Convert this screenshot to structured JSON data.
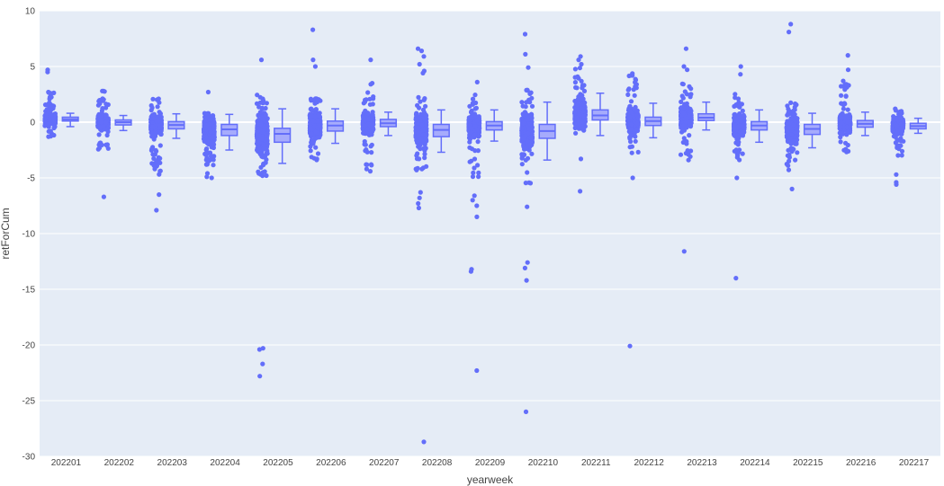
{
  "chart_data": {
    "type": "box",
    "xlabel": "yearweek",
    "ylabel": "retForCum",
    "ylim": [
      -30,
      10
    ],
    "yticks": [
      10,
      5,
      0,
      -5,
      -10,
      -15,
      -20,
      -25,
      -30
    ],
    "categories": [
      "202201",
      "202202",
      "202203",
      "202204",
      "202205",
      "202206",
      "202207",
      "202208",
      "202209",
      "202210",
      "202211",
      "202212",
      "202213",
      "202214",
      "202215",
      "202216",
      "202217"
    ],
    "points": "all",
    "grid": true,
    "legend": "none",
    "colors": {
      "box": "#636efa",
      "box_fill": "#a6abfc",
      "plot_bg": "#e5ecf6",
      "grid": "#ffffff",
      "text": "#444444"
    },
    "stats": [
      {
        "q1": 0.1,
        "median": 0.25,
        "q3": 0.45,
        "whisker_low": -0.4,
        "whisker_high": 0.8,
        "pmin": -1.3,
        "pmax": 3.0
      },
      {
        "q1": -0.25,
        "median": 0.0,
        "q3": 0.2,
        "whisker_low": -0.75,
        "whisker_high": 0.6,
        "pmin": -2.5,
        "pmax": 2.8
      },
      {
        "q1": -0.6,
        "median": -0.25,
        "q3": 0.05,
        "whisker_low": -1.45,
        "whisker_high": 0.75,
        "pmin": -4.8,
        "pmax": 2.1
      },
      {
        "q1": -1.2,
        "median": -0.65,
        "q3": -0.2,
        "whisker_low": -2.5,
        "whisker_high": 0.7,
        "pmin": -4.0,
        "pmax": 0.8
      },
      {
        "q1": -1.8,
        "median": -1.05,
        "q3": -0.55,
        "whisker_low": -3.7,
        "whisker_high": 1.2,
        "pmin": -5.0,
        "pmax": 2.5
      },
      {
        "q1": -0.8,
        "median": -0.3,
        "q3": 0.1,
        "whisker_low": -1.9,
        "whisker_high": 1.2,
        "pmin": -3.5,
        "pmax": 2.2
      },
      {
        "q1": -0.4,
        "median": -0.1,
        "q3": 0.25,
        "whisker_low": -1.2,
        "whisker_high": 0.9,
        "pmin": -4.3,
        "pmax": 3.5
      },
      {
        "q1": -1.3,
        "median": -0.7,
        "q3": -0.2,
        "whisker_low": -2.7,
        "whisker_high": 1.1,
        "pmin": -4.3,
        "pmax": 2.5
      },
      {
        "q1": -0.7,
        "median": -0.3,
        "q3": 0.05,
        "whisker_low": -1.7,
        "whisker_high": 1.1,
        "pmin": -5.0,
        "pmax": 2.7
      },
      {
        "q1": -1.45,
        "median": -0.8,
        "q3": -0.2,
        "whisker_low": -3.4,
        "whisker_high": 1.8,
        "pmin": -5.8,
        "pmax": 2.9
      },
      {
        "q1": 0.2,
        "median": 0.6,
        "q3": 1.1,
        "whisker_low": -1.2,
        "whisker_high": 2.6,
        "pmin": -1.0,
        "pmax": 5.0
      },
      {
        "q1": -0.3,
        "median": 0.1,
        "q3": 0.45,
        "whisker_low": -1.4,
        "whisker_high": 1.7,
        "pmin": -3.3,
        "pmax": 4.5
      },
      {
        "q1": 0.15,
        "median": 0.4,
        "q3": 0.75,
        "whisker_low": -0.7,
        "whisker_high": 1.8,
        "pmin": -3.5,
        "pmax": 3.5
      },
      {
        "q1": -0.7,
        "median": -0.3,
        "q3": 0.05,
        "whisker_low": -1.8,
        "whisker_high": 1.1,
        "pmin": -3.8,
        "pmax": 2.7
      },
      {
        "q1": -1.1,
        "median": -0.6,
        "q3": -0.2,
        "whisker_low": -2.3,
        "whisker_high": 0.8,
        "pmin": -4.5,
        "pmax": 1.8
      },
      {
        "q1": -0.45,
        "median": -0.15,
        "q3": 0.15,
        "whisker_low": -1.2,
        "whisker_high": 0.9,
        "pmin": -2.8,
        "pmax": 3.5
      },
      {
        "q1": -0.6,
        "median": -0.35,
        "q3": -0.1,
        "whisker_low": -1.0,
        "whisker_high": 0.35,
        "pmin": -3.0,
        "pmax": 1.3
      }
    ],
    "outliers": [
      [
        4.7,
        4.5,
        -1.3
      ],
      [
        2.8,
        -6.7
      ],
      [
        2.1,
        -4.2,
        -6.5,
        -7.9
      ],
      [
        2.7,
        -4.6,
        -4.9,
        -5.0
      ],
      [
        5.6,
        -20.3,
        -20.4,
        -21.7,
        -22.8,
        -4.5
      ],
      [
        8.3,
        5.6,
        5.0,
        -3.3
      ],
      [
        5.6,
        3.4,
        -3.8,
        -4.4
      ],
      [
        6.6,
        6.4,
        5.9,
        5.2,
        4.6,
        4.4,
        -6.3,
        -6.8,
        -7.3,
        -7.7,
        -28.7
      ],
      [
        3.6,
        -6.6,
        -7.0,
        -7.5,
        -8.5,
        -13.2,
        -13.4,
        -22.3
      ],
      [
        7.9,
        6.1,
        4.9,
        -7.6,
        -12.6,
        -13.1,
        -14.2,
        -26.0
      ],
      [
        5.9,
        5.6,
        5.2,
        -3.3,
        -6.2
      ],
      [
        -5.0,
        -20.1
      ],
      [
        6.6,
        5.0,
        4.7,
        -11.6,
        -3.4
      ],
      [
        5.0,
        4.3,
        -5.0,
        -14.0
      ],
      [
        8.8,
        8.1,
        -6.0
      ],
      [
        6.0,
        4.7,
        3.7
      ],
      [
        -4.7,
        -5.4,
        -5.6
      ]
    ]
  }
}
